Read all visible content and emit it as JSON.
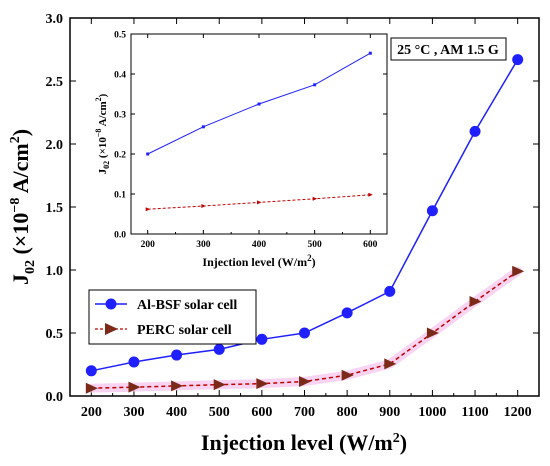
{
  "chart_data": [
    {
      "type": "line",
      "title": "",
      "xlabel": "Injection level (W/m²)",
      "ylabel": "J02 (×10−8 A/cm²)",
      "xlim": [
        150,
        1250
      ],
      "ylim": [
        0,
        3.0
      ],
      "x": [
        200,
        300,
        400,
        500,
        600,
        700,
        800,
        900,
        1000,
        1100,
        1200
      ],
      "x_ticks": [
        "200",
        "300",
        "400",
        "500",
        "600",
        "700",
        "800",
        "900",
        "1000",
        "1100",
        "1200"
      ],
      "y_ticks": [
        "0.0",
        "0.5",
        "1.0",
        "1.5",
        "2.0",
        "2.5",
        "3.0"
      ],
      "grid": false,
      "legend_position": "bottom-left",
      "annotation": "25 °C , AM 1.5 G",
      "series": [
        {
          "name": "Al-BSF solar cell",
          "color": "#1f1fff",
          "marker": "circle",
          "line_style": "solid",
          "values": [
            0.2,
            0.27,
            0.325,
            0.37,
            0.45,
            0.5,
            0.66,
            0.83,
            1.47,
            2.1,
            2.67
          ]
        },
        {
          "name": "PERC solar cell",
          "color": "#7b2a1a",
          "line_color": "#c00000",
          "marker": "triangle-right",
          "line_style": "dashed",
          "values": [
            0.062,
            0.07,
            0.08,
            0.09,
            0.098,
            0.115,
            0.165,
            0.255,
            0.5,
            0.75,
            0.99
          ]
        }
      ]
    },
    {
      "type": "line",
      "title": "",
      "xlabel": "Injection level (W/m²)",
      "ylabel": "J02 (×10−8 A/cm²)",
      "xlim": [
        170,
        630
      ],
      "ylim": [
        0,
        0.5
      ],
      "x": [
        200,
        300,
        400,
        500,
        600
      ],
      "x_ticks": [
        "200",
        "300",
        "400",
        "500",
        "600"
      ],
      "y_ticks": [
        "0.0",
        "0.1",
        "0.2",
        "0.3",
        "0.4",
        "0.5"
      ],
      "grid": false,
      "series": [
        {
          "color": "#1f1fff",
          "marker": "small-square",
          "line_style": "solid",
          "values": [
            0.2,
            0.268,
            0.325,
            0.373,
            0.452
          ]
        },
        {
          "color": "#c00000",
          "marker": "small-triangle",
          "line_style": "dashed",
          "values": [
            0.062,
            0.07,
            0.079,
            0.088,
            0.098
          ]
        }
      ]
    }
  ]
}
